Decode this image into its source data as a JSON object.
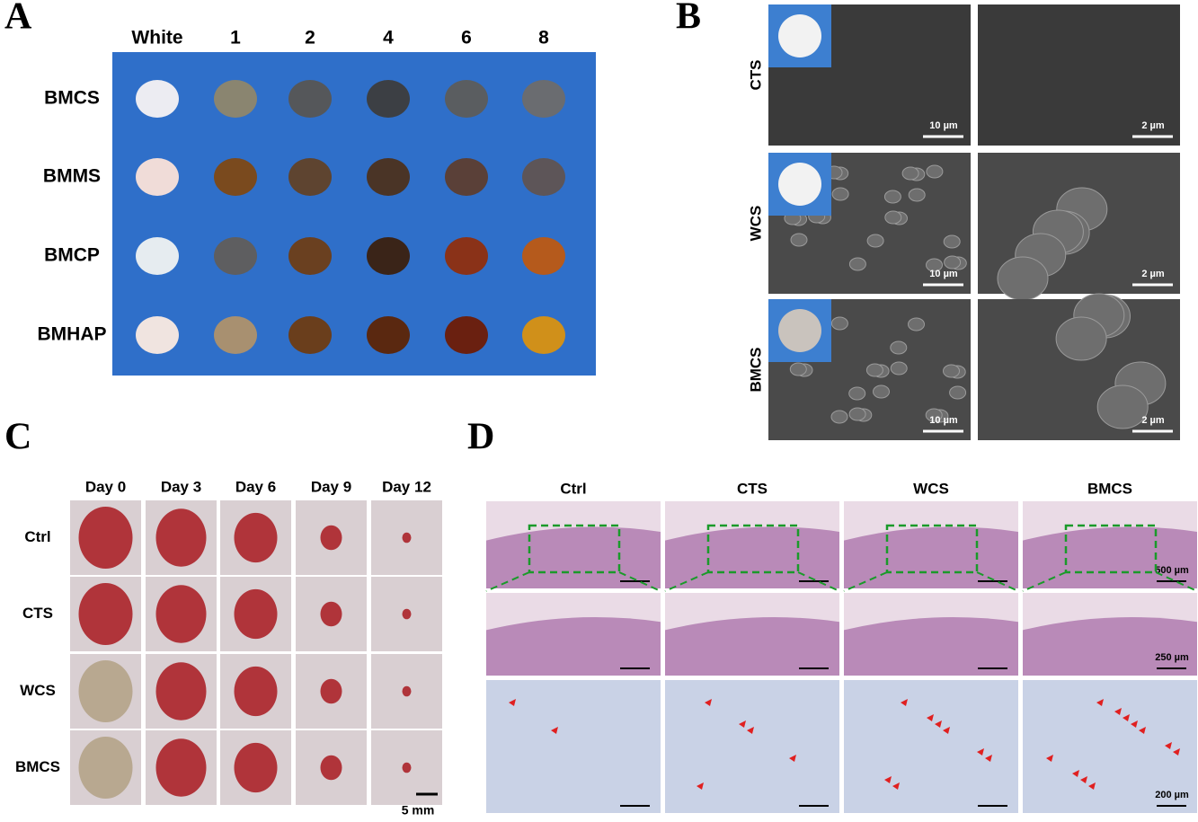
{
  "panels": {
    "a": {
      "label": "A",
      "columns": [
        "White",
        "1",
        "2",
        "4",
        "6",
        "8"
      ],
      "rows": [
        "BMCS",
        "BMMS",
        "BMCP",
        "BMHAP"
      ]
    },
    "b": {
      "label": "B",
      "rows": [
        "CTS",
        "WCS",
        "BMCS"
      ],
      "scale_bars": [
        [
          "10 µm",
          "2 µm"
        ],
        [
          "10 µm",
          "2 µm"
        ],
        [
          "10 µm",
          "2 µm"
        ]
      ]
    },
    "c": {
      "label": "C",
      "columns": [
        "Day 0",
        "Day 3",
        "Day 6",
        "Day 9",
        "Day 12"
      ],
      "rows": [
        "Ctrl",
        "CTS",
        "WCS",
        "BMCS"
      ],
      "scale_bar": "5 mm"
    },
    "d": {
      "label": "D",
      "columns": [
        "Ctrl",
        "CTS",
        "WCS",
        "BMCS"
      ],
      "scale_bars": [
        "500 µm",
        "250 µm",
        "200 µm"
      ]
    }
  }
}
